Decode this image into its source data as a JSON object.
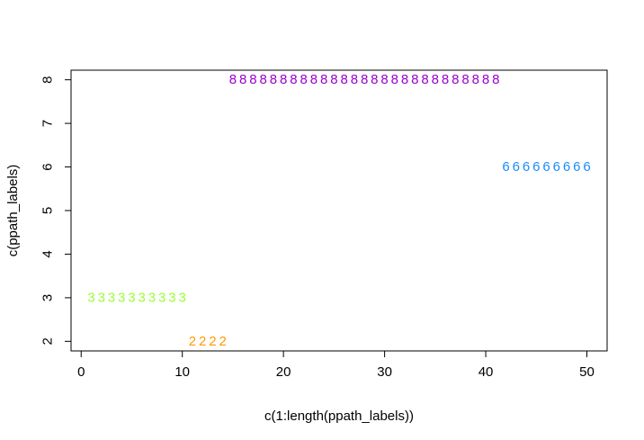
{
  "chart_data": {
    "type": "scatter",
    "title": "",
    "xlabel": "c(1:length(ppath_labels))",
    "ylabel": "c(ppath_labels)",
    "xlim": [
      -1,
      52
    ],
    "ylim": [
      1.78,
      8.22
    ],
    "x_ticks": [
      0,
      10,
      20,
      30,
      40,
      50
    ],
    "y_ticks": [
      2,
      3,
      4,
      5,
      6,
      7,
      8
    ],
    "x_tick_labels": [
      "0",
      "10",
      "20",
      "30",
      "40",
      "50"
    ],
    "y_tick_labels": [
      "2",
      "3",
      "4",
      "5",
      "6",
      "7",
      "8"
    ],
    "grid": false,
    "series": [
      {
        "label": "3",
        "color": "#99ff33",
        "x": [
          1,
          2,
          3,
          4,
          5,
          6,
          7,
          8,
          9,
          10
        ],
        "y": [
          3,
          3,
          3,
          3,
          3,
          3,
          3,
          3,
          3,
          3
        ]
      },
      {
        "label": "2",
        "color": "#ff9900",
        "x": [
          11,
          12,
          13,
          14
        ],
        "y": [
          2,
          2,
          2,
          2
        ]
      },
      {
        "label": "8",
        "color": "#9900cc",
        "x": [
          15,
          16,
          17,
          18,
          19,
          20,
          21,
          22,
          23,
          24,
          25,
          26,
          27,
          28,
          29,
          30,
          31,
          32,
          33,
          34,
          35,
          36,
          37,
          38,
          39,
          40,
          41
        ],
        "y": [
          8,
          8,
          8,
          8,
          8,
          8,
          8,
          8,
          8,
          8,
          8,
          8,
          8,
          8,
          8,
          8,
          8,
          8,
          8,
          8,
          8,
          8,
          8,
          8,
          8,
          8,
          8
        ]
      },
      {
        "label": "6",
        "color": "#1a8cff",
        "x": [
          42,
          43,
          44,
          45,
          46,
          47,
          48,
          49,
          50
        ],
        "y": [
          6,
          6,
          6,
          6,
          6,
          6,
          6,
          6,
          6
        ]
      }
    ]
  }
}
